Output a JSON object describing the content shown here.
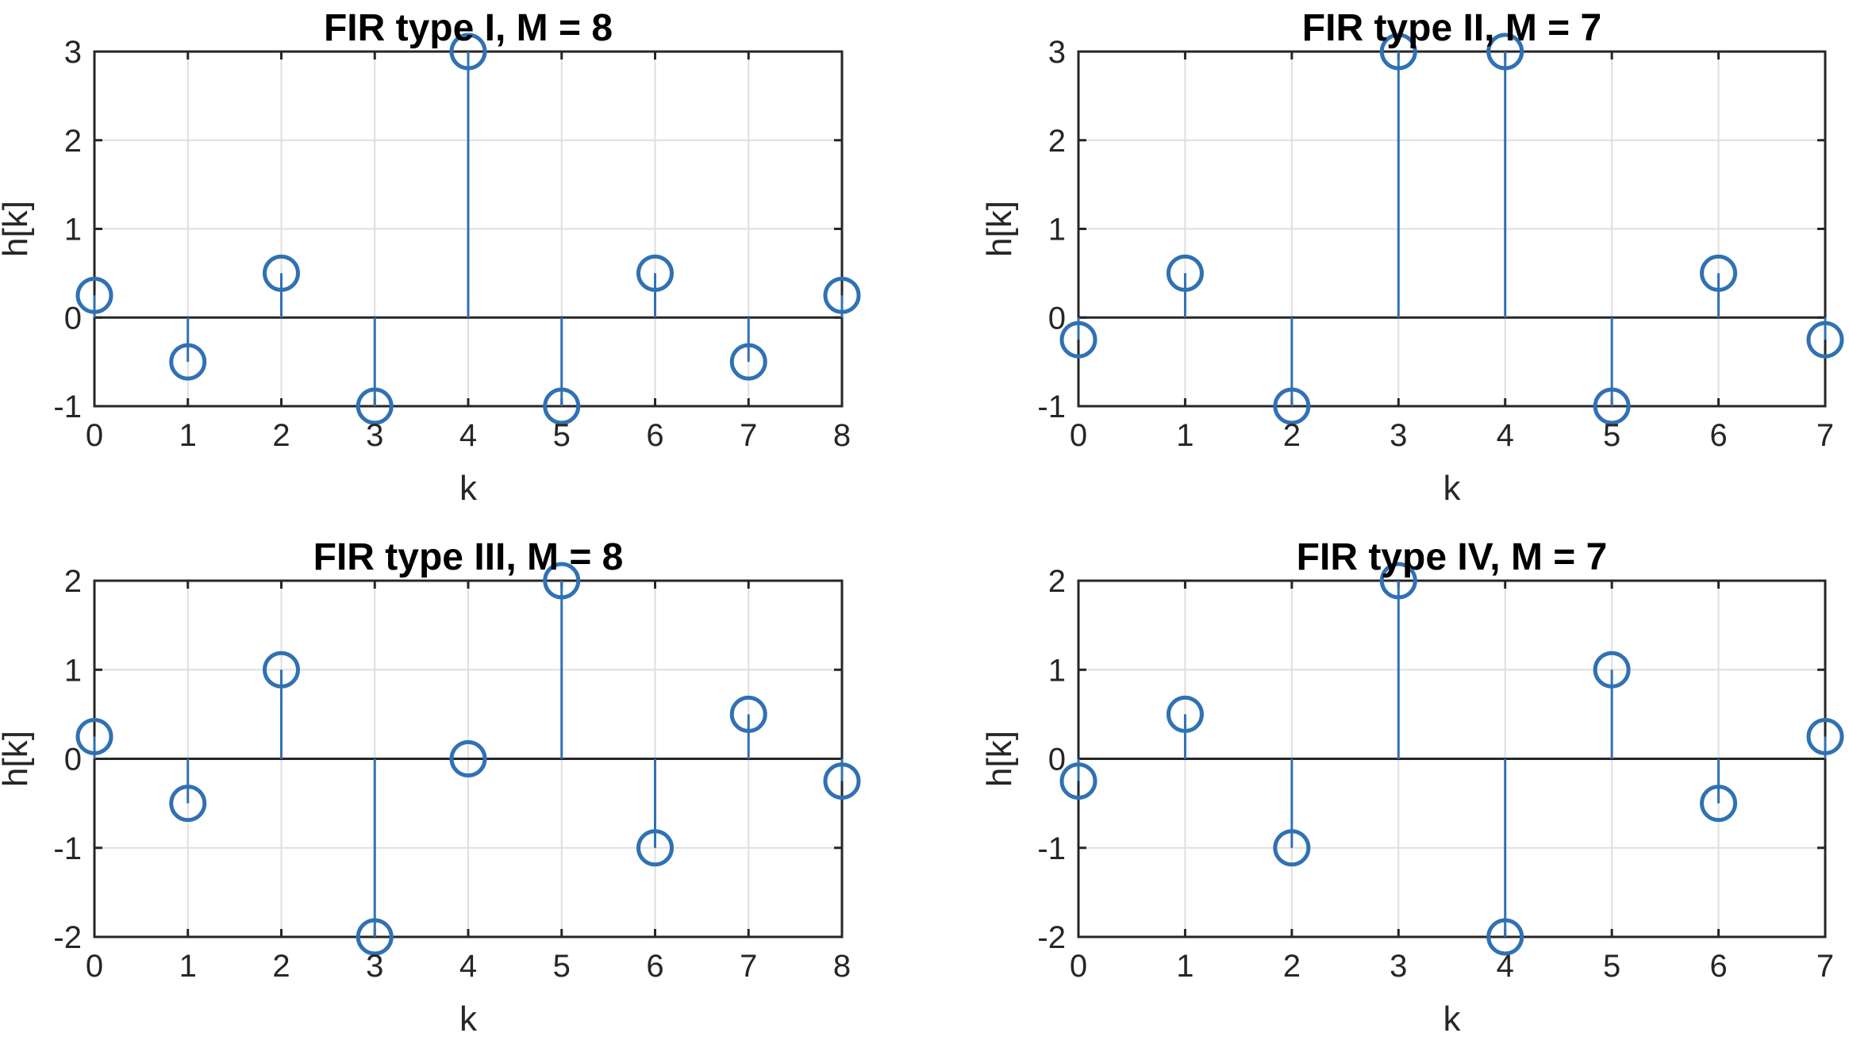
{
  "chart_data": [
    {
      "type": "stem",
      "title": "FIR type I, M = 8",
      "xlabel": "k",
      "ylabel": "h[k]",
      "xlim": [
        0,
        8
      ],
      "ylim": [
        -1,
        3
      ],
      "xticks": [
        0,
        1,
        2,
        3,
        4,
        5,
        6,
        7,
        8
      ],
      "yticks": [
        -1,
        0,
        1,
        2,
        3
      ],
      "grid": true,
      "color": "#3071b3",
      "x": [
        0,
        1,
        2,
        3,
        4,
        5,
        6,
        7,
        8
      ],
      "values": [
        0.25,
        -0.5,
        0.5,
        -1,
        3,
        -1,
        0.5,
        -0.5,
        0.25
      ]
    },
    {
      "type": "stem",
      "title": "FIR type II, M = 7",
      "xlabel": "k",
      "ylabel": "h[k]",
      "xlim": [
        0,
        7
      ],
      "ylim": [
        -1,
        3
      ],
      "xticks": [
        0,
        1,
        2,
        3,
        4,
        5,
        6,
        7
      ],
      "yticks": [
        -1,
        0,
        1,
        2,
        3
      ],
      "grid": true,
      "color": "#3071b3",
      "x": [
        0,
        1,
        2,
        3,
        4,
        5,
        6,
        7
      ],
      "values": [
        -0.25,
        0.5,
        -1,
        3,
        3,
        -1,
        0.5,
        -0.25
      ]
    },
    {
      "type": "stem",
      "title": "FIR type III, M = 8",
      "xlabel": "k",
      "ylabel": "h[k]",
      "xlim": [
        0,
        8
      ],
      "ylim": [
        -2,
        2
      ],
      "xticks": [
        0,
        1,
        2,
        3,
        4,
        5,
        6,
        7,
        8
      ],
      "yticks": [
        -2,
        -1,
        0,
        1,
        2
      ],
      "grid": true,
      "color": "#3071b3",
      "x": [
        0,
        1,
        2,
        3,
        4,
        5,
        6,
        7,
        8
      ],
      "values": [
        0.25,
        -0.5,
        1,
        -2,
        0,
        2,
        -1,
        0.5,
        -0.25
      ]
    },
    {
      "type": "stem",
      "title": "FIR type IV, M = 7",
      "xlabel": "k",
      "ylabel": "h[k]",
      "xlim": [
        0,
        7
      ],
      "ylim": [
        -2,
        2
      ],
      "xticks": [
        0,
        1,
        2,
        3,
        4,
        5,
        6,
        7
      ],
      "yticks": [
        -2,
        -1,
        0,
        1,
        2
      ],
      "grid": true,
      "color": "#3071b3",
      "x": [
        0,
        1,
        2,
        3,
        4,
        5,
        6,
        7
      ],
      "values": [
        -0.25,
        0.5,
        -1,
        2,
        -2,
        1,
        -0.5,
        0.25
      ]
    }
  ]
}
